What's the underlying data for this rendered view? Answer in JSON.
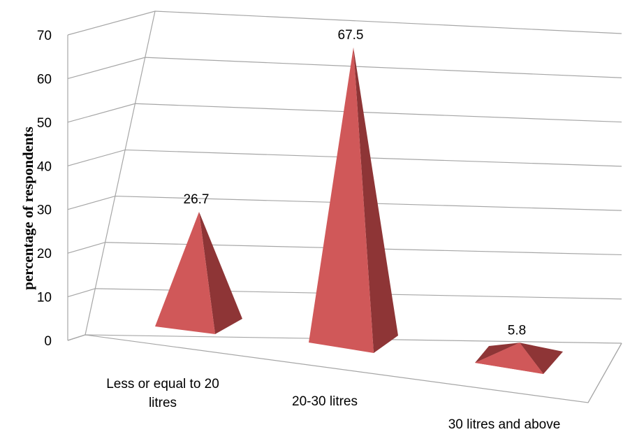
{
  "chart_data": {
    "type": "bar",
    "bar_shape": "pyramid-3d",
    "categories": [
      "Less or equal to 20 litres",
      "20-30 litres",
      "30 litres and above"
    ],
    "category_label_lines": [
      [
        "Less or equal to 20",
        "litres"
      ],
      [
        "20-30 litres"
      ],
      [
        "30 litres and above"
      ]
    ],
    "values": [
      26.7,
      67.5,
      5.8
    ],
    "data_labels": [
      "26.7",
      "67.5",
      "5.8"
    ],
    "title": "",
    "xlabel": "",
    "ylabel": "percentage of respondents",
    "ylim": [
      0,
      70
    ],
    "yticks": [
      "0",
      "10",
      "20",
      "30",
      "40",
      "50",
      "60",
      "70"
    ],
    "grid": true,
    "legend": "none",
    "colors": {
      "bar_front": "#d05859",
      "bar_side": "#8e3536",
      "bar_top": "#b04748",
      "grid": "#a6a6a6"
    }
  }
}
